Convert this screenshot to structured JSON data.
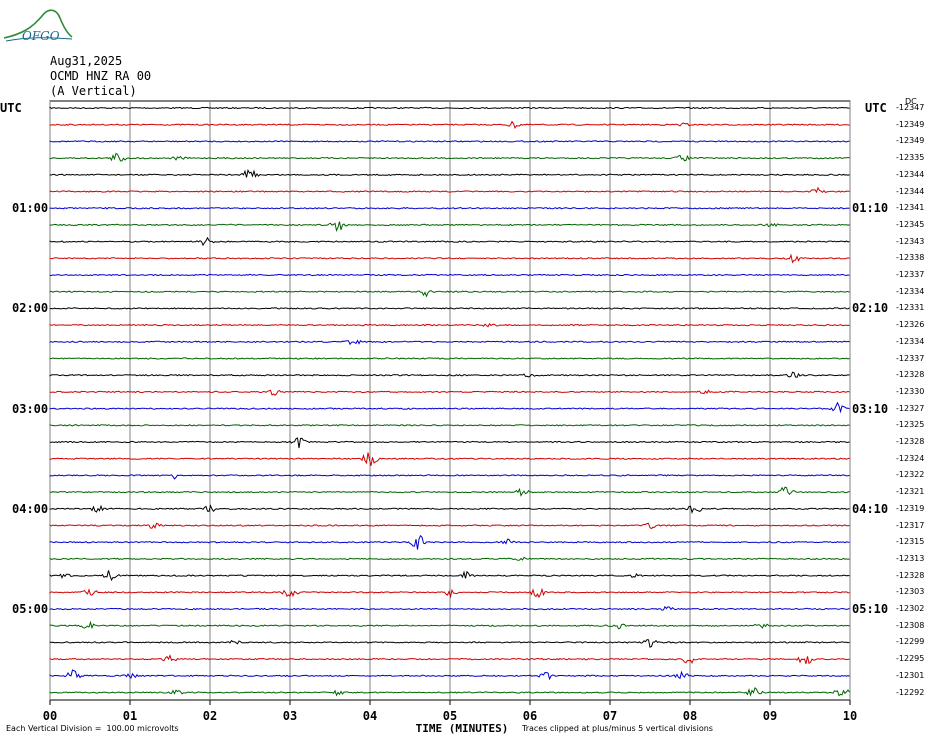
{
  "logo": {
    "text": "OFGO",
    "icon": "volcano-logo-icon",
    "color": "#2e8b3a"
  },
  "header": {
    "date": "Aug31,2025",
    "station": "OCMD HNZ RA 00",
    "component": "(A Vertical)"
  },
  "utc_left": "UTC",
  "utc_right": "UTC",
  "dc_label": "DC",
  "left_times": [
    "01:00",
    "02:00",
    "03:00",
    "04:00",
    "05:00"
  ],
  "right_times": [
    "01:10",
    "02:10",
    "03:10",
    "04:10",
    "05:10"
  ],
  "xlabel": "TIME (MINUTES)",
  "footer_left": "Each Vertical Division =  100.00 microvolts",
  "footer_right": "Traces clipped at plus/minus 5 vertical divisions",
  "colors": {
    "trace_cycle": [
      "#000000",
      "#d00000",
      "#0000d0",
      "#006400"
    ],
    "grid": "#808080"
  },
  "chart_data": {
    "type": "line",
    "title": "",
    "xlabel": "TIME (MINUTES)",
    "xlim": [
      0,
      10
    ],
    "x_ticks": [
      "00",
      "01",
      "02",
      "03",
      "04",
      "05",
      "06",
      "07",
      "08",
      "09",
      "10"
    ],
    "grid": "vertical",
    "rows": [
      {
        "dc": "-12347",
        "events": []
      },
      {
        "dc": "-12349",
        "events": [
          [
            5.8,
            2
          ],
          [
            7.9,
            1
          ]
        ]
      },
      {
        "dc": "-12349",
        "events": []
      },
      {
        "dc": "-12335",
        "events": [
          [
            0.85,
            4
          ],
          [
            1.6,
            1
          ],
          [
            7.9,
            2
          ]
        ]
      },
      {
        "dc": "-12344",
        "events": [
          [
            2.5,
            4
          ]
        ]
      },
      {
        "dc": "-12344",
        "events": [
          [
            9.6,
            2
          ]
        ]
      },
      {
        "dc": "-12341",
        "events": []
      },
      {
        "dc": "-12345",
        "events": [
          [
            3.6,
            4
          ],
          [
            9.0,
            1
          ]
        ]
      },
      {
        "dc": "-12343",
        "events": [
          [
            1.95,
            3
          ]
        ]
      },
      {
        "dc": "-12338",
        "events": [
          [
            9.3,
            3
          ]
        ]
      },
      {
        "dc": "-12337",
        "events": []
      },
      {
        "dc": "-12334",
        "events": [
          [
            4.7,
            3
          ]
        ]
      },
      {
        "dc": "-12331",
        "events": []
      },
      {
        "dc": "-12326",
        "events": [
          [
            5.5,
            1
          ]
        ]
      },
      {
        "dc": "-12334",
        "events": [
          [
            3.8,
            2
          ]
        ]
      },
      {
        "dc": "-12337",
        "events": []
      },
      {
        "dc": "-12328",
        "events": [
          [
            6.0,
            1
          ],
          [
            9.3,
            2
          ]
        ]
      },
      {
        "dc": "-12330",
        "events": [
          [
            2.8,
            2
          ],
          [
            8.2,
            1
          ]
        ]
      },
      {
        "dc": "-12327",
        "events": [
          [
            9.85,
            4
          ]
        ]
      },
      {
        "dc": "-12325",
        "events": []
      },
      {
        "dc": "-12328",
        "events": [
          [
            3.1,
            4
          ]
        ]
      },
      {
        "dc": "-12324",
        "events": [
          [
            4.0,
            5
          ]
        ]
      },
      {
        "dc": "-12322",
        "events": [
          [
            1.6,
            3
          ]
        ]
      },
      {
        "dc": "-12321",
        "events": [
          [
            5.9,
            2
          ],
          [
            9.2,
            4
          ]
        ]
      },
      {
        "dc": "-12319",
        "events": [
          [
            0.6,
            2
          ],
          [
            2.0,
            2
          ],
          [
            8.05,
            3
          ]
        ]
      },
      {
        "dc": "-12317",
        "events": [
          [
            1.3,
            2
          ],
          [
            7.5,
            2
          ]
        ]
      },
      {
        "dc": "-12315",
        "events": [
          [
            4.6,
            5
          ],
          [
            5.7,
            2
          ]
        ]
      },
      {
        "dc": "-12313",
        "events": [
          [
            5.9,
            1
          ]
        ]
      },
      {
        "dc": "-12328",
        "events": [
          [
            0.2,
            2
          ],
          [
            0.75,
            4
          ],
          [
            5.2,
            3
          ],
          [
            7.3,
            1
          ]
        ]
      },
      {
        "dc": "-12303",
        "events": [
          [
            0.5,
            2
          ],
          [
            3.0,
            4
          ],
          [
            5.0,
            3
          ],
          [
            6.1,
            3
          ]
        ]
      },
      {
        "dc": "-12302",
        "events": [
          [
            7.7,
            2
          ]
        ]
      },
      {
        "dc": "-12308",
        "events": [
          [
            0.45,
            4
          ],
          [
            7.1,
            2
          ],
          [
            8.9,
            2
          ]
        ]
      },
      {
        "dc": "-12299",
        "events": [
          [
            2.3,
            2
          ],
          [
            7.5,
            3
          ]
        ]
      },
      {
        "dc": "-12295",
        "events": [
          [
            1.5,
            2
          ],
          [
            8.0,
            4
          ],
          [
            9.45,
            4
          ]
        ]
      },
      {
        "dc": "-12301",
        "events": [
          [
            0.3,
            4
          ],
          [
            1.0,
            2
          ],
          [
            6.2,
            3
          ],
          [
            7.9,
            3
          ]
        ]
      },
      {
        "dc": "-12292",
        "events": [
          [
            1.6,
            2
          ],
          [
            3.6,
            2
          ],
          [
            8.8,
            3
          ],
          [
            9.9,
            3
          ]
        ]
      }
    ]
  }
}
